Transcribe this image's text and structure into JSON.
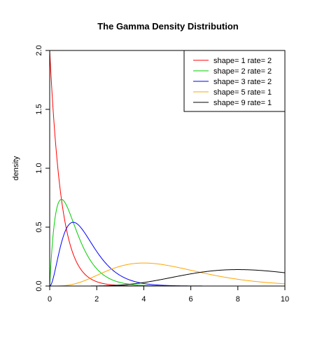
{
  "chart_data": {
    "type": "line",
    "title": "The Gamma Density Distribution",
    "xlabel": "",
    "ylabel": "density",
    "xlim": [
      0,
      10
    ],
    "ylim": [
      0,
      2.0
    ],
    "x_ticks": [
      "0",
      "2",
      "4",
      "6",
      "8",
      "10"
    ],
    "y_ticks": [
      "0.0",
      "0.5",
      "1.0",
      "1.5",
      "2.0"
    ],
    "grid": false,
    "legend_position": "top-right",
    "series": [
      {
        "name": "shape= 1  rate= 2",
        "shape": 1,
        "rate": 2,
        "color": "#ff0000",
        "x": [
          0,
          0.25,
          0.5,
          0.75,
          1,
          1.5,
          2,
          2.5,
          3,
          4,
          5
        ],
        "y": [
          2.0,
          1.213,
          0.736,
          0.446,
          0.271,
          0.1,
          0.037,
          0.013,
          0.005,
          0.001,
          0.0
        ]
      },
      {
        "name": "shape= 2  rate= 2",
        "shape": 2,
        "rate": 2,
        "color": "#00cd00",
        "x": [
          0,
          0.25,
          0.5,
          0.75,
          1,
          1.5,
          2,
          2.5,
          3,
          4,
          5
        ],
        "y": [
          0.0,
          0.607,
          0.736,
          0.669,
          0.541,
          0.299,
          0.147,
          0.067,
          0.03,
          0.005,
          0.001
        ]
      },
      {
        "name": "shape= 3  rate= 2",
        "shape": 3,
        "rate": 2,
        "color": "#0000ff",
        "x": [
          0,
          0.5,
          1,
          1.5,
          2,
          2.5,
          3,
          4,
          5,
          6
        ],
        "y": [
          0.0,
          0.368,
          0.541,
          0.448,
          0.293,
          0.168,
          0.089,
          0.021,
          0.005,
          0.001
        ]
      },
      {
        "name": "shape= 5  rate= 1",
        "shape": 5,
        "rate": 1,
        "color": "#ffa500",
        "x": [
          0,
          1,
          2,
          3,
          4,
          5,
          6,
          7,
          8,
          9,
          10
        ],
        "y": [
          0.0,
          0.015,
          0.09,
          0.168,
          0.195,
          0.175,
          0.134,
          0.091,
          0.057,
          0.034,
          0.019
        ]
      },
      {
        "name": "shape= 9  rate= 1",
        "shape": 9,
        "rate": 1,
        "color": "#000000",
        "x": [
          0,
          2,
          4,
          5,
          6,
          7,
          8,
          9,
          10
        ],
        "y": [
          0.0,
          0.003,
          0.03,
          0.065,
          0.103,
          0.13,
          0.14,
          0.132,
          0.113
        ]
      }
    ]
  }
}
